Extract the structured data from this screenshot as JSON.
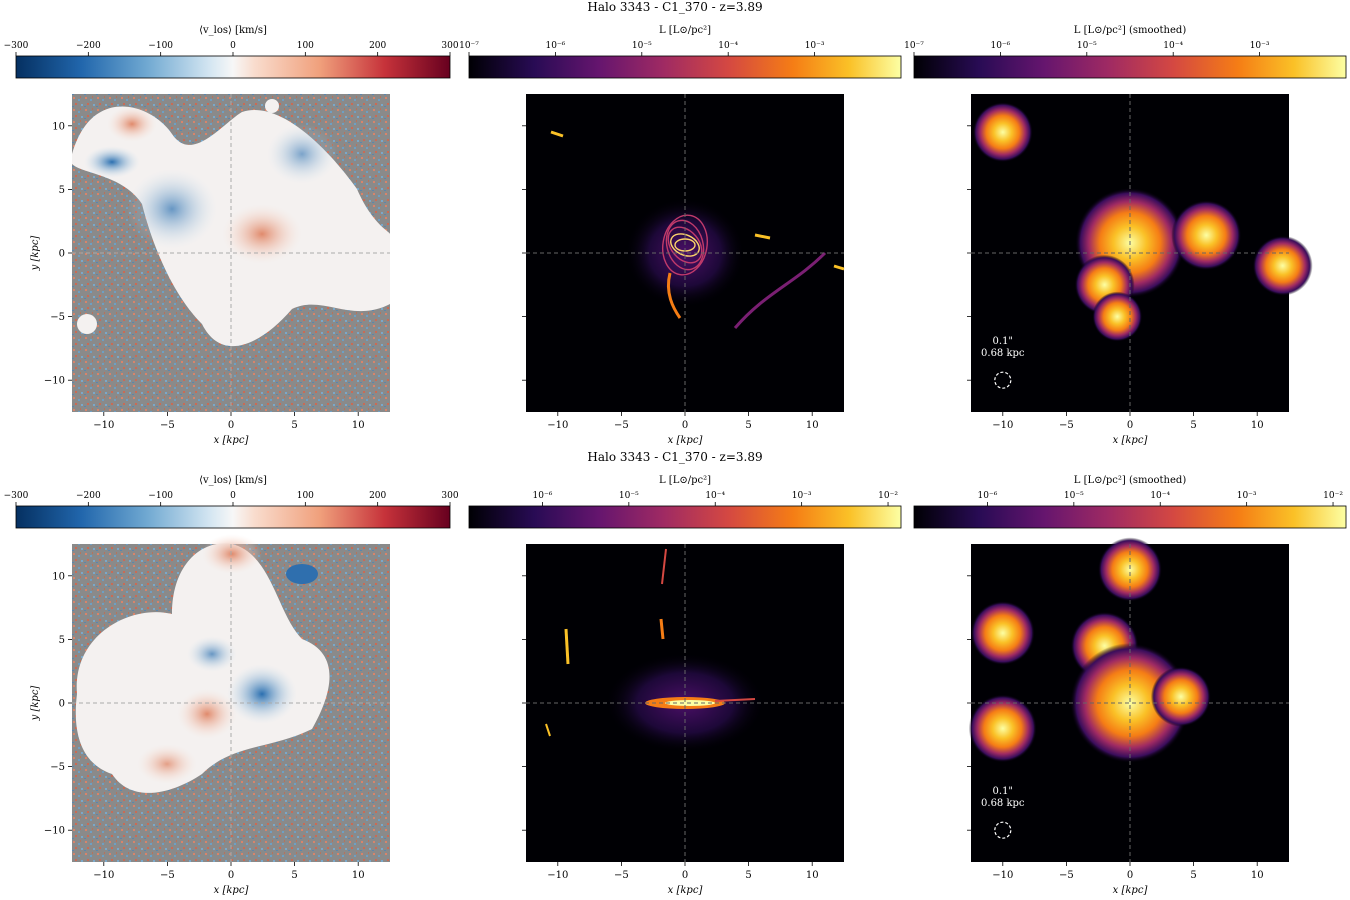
{
  "chart_data": [
    {
      "type": "heatmap",
      "title": "Halo 3343 - C1_370 - z=3.89",
      "panels": [
        {
          "kind": "velocity",
          "colorbar_label": "⟨v_los⟩ [km/s]",
          "colorbar_ticks": [
            "−300",
            "−200",
            "−100",
            "0",
            "100",
            "200",
            "300"
          ],
          "colorbar_range": [
            -300,
            300
          ],
          "xlabel": "x [kpc]",
          "ylabel": "y [kpc]",
          "xticks": [
            "−10",
            "−5",
            "0",
            "5",
            "10"
          ],
          "yticks": [
            "10",
            "5",
            "0",
            "−5",
            "−10"
          ],
          "xlim": [
            -12.5,
            12.5
          ],
          "ylim": [
            -12.5,
            12.5
          ]
        },
        {
          "kind": "luminosity",
          "colorbar_label": "L [L⊙/pc²]",
          "colorbar_ticks": [
            "10⁻⁷",
            "10⁻⁶",
            "10⁻⁵",
            "10⁻⁴",
            "10⁻³"
          ],
          "xlabel": "x [kpc]",
          "xticks": [
            "−10",
            "−5",
            "0",
            "5",
            "10"
          ],
          "xlim": [
            -12.5,
            12.5
          ],
          "ylim": [
            -12.5,
            12.5
          ]
        },
        {
          "kind": "smoothed",
          "colorbar_label": "L [L⊙/pc²] (smoothed)",
          "colorbar_ticks": [
            "10⁻⁷",
            "10⁻⁶",
            "10⁻⁵",
            "10⁻⁴",
            "10⁻³"
          ],
          "xlabel": "x [kpc]",
          "xticks": [
            "−10",
            "−5",
            "0",
            "5",
            "10"
          ],
          "xlim": [
            -12.5,
            12.5
          ],
          "ylim": [
            -12.5,
            12.5
          ],
          "beam_label_1": "0.1\"",
          "beam_label_2": "0.68 kpc"
        }
      ]
    },
    {
      "type": "heatmap",
      "title": "Halo 3343 - C1_370 - z=3.89",
      "panels": [
        {
          "kind": "velocity",
          "colorbar_label": "⟨v_los⟩ [km/s]",
          "colorbar_ticks": [
            "−300",
            "−200",
            "−100",
            "0",
            "100",
            "200",
            "300"
          ],
          "colorbar_range": [
            -300,
            300
          ],
          "xlabel": "x [kpc]",
          "ylabel": "y [kpc]",
          "xticks": [
            "−10",
            "−5",
            "0",
            "5",
            "10"
          ],
          "yticks": [
            "10",
            "5",
            "0",
            "−5",
            "−10"
          ],
          "xlim": [
            -12.5,
            12.5
          ],
          "ylim": [
            -12.5,
            12.5
          ]
        },
        {
          "kind": "luminosity",
          "colorbar_label": "L [L⊙/pc²]",
          "colorbar_ticks": [
            "10⁻⁶",
            "10⁻⁵",
            "10⁻⁴",
            "10⁻³",
            "10⁻²"
          ],
          "xlabel": "x [kpc]",
          "xticks": [
            "−10",
            "−5",
            "0",
            "5",
            "10"
          ],
          "xlim": [
            -12.5,
            12.5
          ],
          "ylim": [
            -12.5,
            12.5
          ]
        },
        {
          "kind": "smoothed",
          "colorbar_label": "L [L⊙/pc²] (smoothed)",
          "colorbar_ticks": [
            "10⁻⁶",
            "10⁻⁵",
            "10⁻⁴",
            "10⁻³",
            "10⁻²"
          ],
          "xlabel": "x [kpc]",
          "xticks": [
            "−10",
            "−5",
            "0",
            "5",
            "10"
          ],
          "xlim": [
            -12.5,
            12.5
          ],
          "ylim": [
            -12.5,
            12.5
          ],
          "beam_label_1": "0.1\"",
          "beam_label_2": "0.68 kpc"
        }
      ]
    }
  ]
}
